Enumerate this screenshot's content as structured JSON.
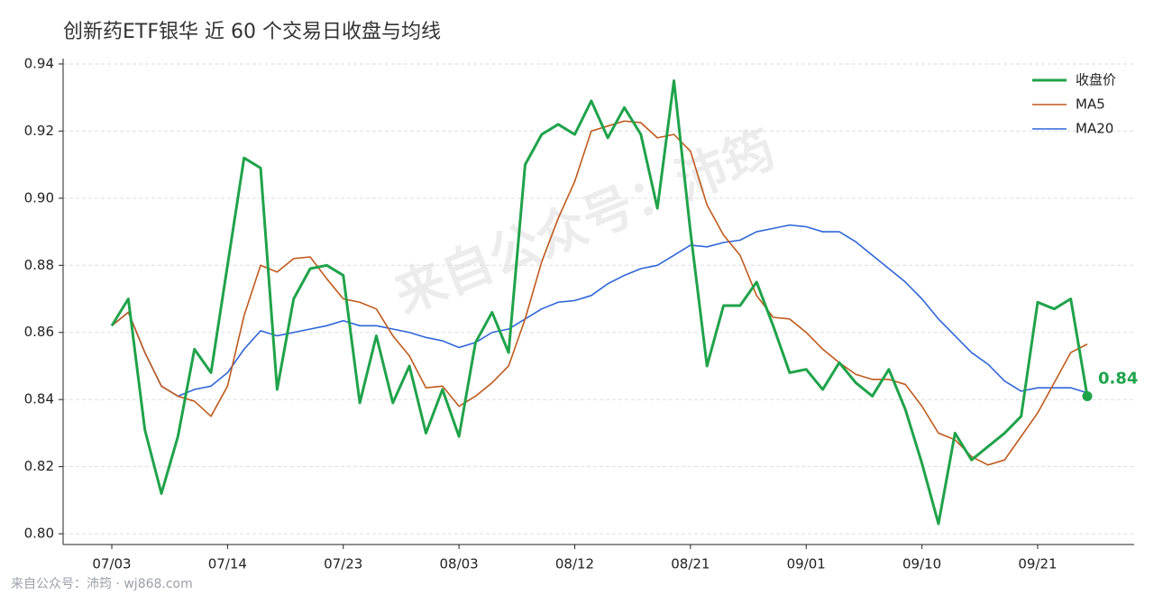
{
  "chart_data": {
    "type": "line",
    "title": "创新药ETF银华 近 60 个交易日收盘与均线",
    "watermark": "来自公众号：沛筠",
    "footer": "来自公众号：沛筠 · wj868.com",
    "categories": [
      "07/03",
      null,
      null,
      null,
      null,
      null,
      null,
      "07/14",
      null,
      null,
      null,
      null,
      null,
      null,
      "07/23",
      null,
      null,
      null,
      null,
      null,
      null,
      "08/03",
      null,
      null,
      null,
      null,
      null,
      null,
      "08/12",
      null,
      null,
      null,
      null,
      null,
      null,
      "08/21",
      null,
      null,
      null,
      null,
      null,
      null,
      "09/01",
      null,
      null,
      null,
      null,
      null,
      null,
      "09/10",
      null,
      null,
      null,
      null,
      null,
      null,
      "09/21",
      null,
      null,
      null
    ],
    "series": [
      {
        "name": "收盘价",
        "color": "#1fa34a",
        "width": 3,
        "values": [
          0.862,
          0.87,
          0.831,
          0.812,
          0.829,
          0.855,
          0.848,
          0.88,
          0.912,
          0.909,
          0.843,
          0.87,
          0.879,
          0.88,
          0.877,
          0.839,
          0.859,
          0.839,
          0.85,
          0.83,
          0.843,
          0.829,
          0.857,
          0.866,
          0.854,
          0.91,
          0.919,
          0.922,
          0.919,
          0.929,
          0.918,
          0.927,
          0.919,
          0.897,
          0.935,
          0.89,
          0.85,
          0.868,
          0.868,
          0.875,
          0.862,
          0.848,
          0.849,
          0.843,
          0.851,
          0.845,
          0.841,
          0.849,
          0.837,
          0.821,
          0.803,
          0.83,
          0.822,
          0.826,
          0.83,
          0.835,
          0.869,
          0.867,
          0.87,
          0.841
        ],
        "value_labels": [
          null,
          null,
          null,
          null,
          null,
          null,
          null,
          null,
          null,
          null,
          null,
          null,
          null,
          null,
          null,
          null,
          null,
          null,
          null,
          null,
          null,
          null,
          null,
          null,
          null,
          null,
          null,
          null,
          null,
          null,
          null,
          null,
          null,
          null,
          null,
          null,
          null,
          null,
          null,
          null,
          null,
          null,
          null,
          null,
          null,
          null,
          null,
          null,
          null,
          null,
          null,
          null,
          null,
          null,
          null,
          null,
          null,
          null,
          null,
          "0.84"
        ]
      },
      {
        "name": "MA5",
        "color": "#bf5a1c",
        "width": 1.6,
        "values": [
          0.862,
          0.866,
          0.854,
          0.844,
          0.841,
          0.8395,
          0.835,
          0.844,
          0.865,
          0.88,
          0.878,
          0.882,
          0.8825,
          0.876,
          0.87,
          0.869,
          0.867,
          0.859,
          0.853,
          0.8435,
          0.844,
          0.838,
          0.841,
          0.845,
          0.85,
          0.864,
          0.881,
          0.894,
          0.905,
          0.92,
          0.9215,
          0.923,
          0.9225,
          0.918,
          0.919,
          0.914,
          0.898,
          0.889,
          0.883,
          0.871,
          0.8645,
          0.864,
          0.86,
          0.855,
          0.851,
          0.8475,
          0.846,
          0.846,
          0.8445,
          0.838,
          0.83,
          0.828,
          0.823,
          0.8205,
          0.822,
          0.829,
          0.836,
          0.845,
          0.854,
          0.8565
        ]
      },
      {
        "name": "MA20",
        "color": "#2f66d8",
        "width": 1.6,
        "values": [
          0.862,
          0.866,
          0.854,
          0.844,
          0.841,
          0.843,
          0.844,
          0.848,
          0.855,
          0.8605,
          0.859,
          0.86,
          0.861,
          0.862,
          0.8635,
          0.862,
          0.862,
          0.861,
          0.86,
          0.8585,
          0.8575,
          0.8555,
          0.857,
          0.86,
          0.861,
          0.864,
          0.867,
          0.869,
          0.8695,
          0.871,
          0.8745,
          0.877,
          0.879,
          0.88,
          0.883,
          0.886,
          0.8855,
          0.8868,
          0.8875,
          0.89,
          0.891,
          0.892,
          0.8915,
          0.89,
          0.89,
          0.887,
          0.883,
          0.879,
          0.875,
          0.87,
          0.864,
          0.859,
          0.854,
          0.8505,
          0.8455,
          0.8425,
          0.8435,
          0.8435,
          0.8435,
          0.842
        ]
      }
    ],
    "ylim": [
      0.7968,
      0.9416
    ],
    "yticks": [
      {
        "value": 0.8,
        "label": "0.80"
      },
      0.82,
      0.84,
      0.86,
      0.88,
      {
        "value": 0.9,
        "label": "0.90"
      },
      0.92,
      0.94
    ],
    "grid": true,
    "legend": "top-right"
  }
}
